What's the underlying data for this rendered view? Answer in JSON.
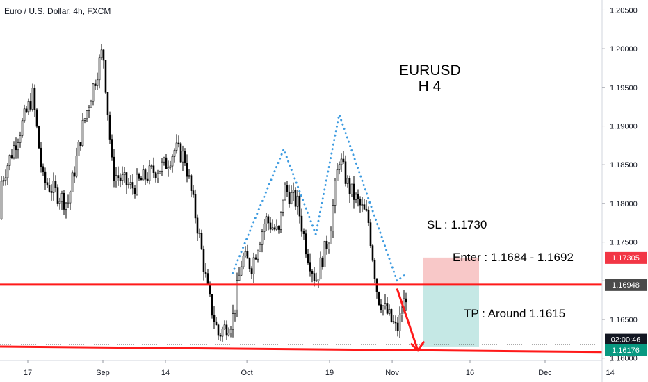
{
  "header": {
    "symbol": "Euro / U.S. Dollar, 4h, FXCM"
  },
  "title": {
    "line1": "EURUSD",
    "line2": "H 4"
  },
  "annotations": {
    "sl": "SL : 1.1730",
    "enter": "Enter : 1.1684 - 1.1692",
    "tp": "TP : Around 1.1615"
  },
  "price_badges": {
    "sl_price": "1.17305",
    "current_price": "1.16948",
    "countdown": "02:00:46",
    "last_price": "1.16176"
  },
  "colors": {
    "candles": "#000000",
    "lines": "#ff1a1a",
    "pattern": "#3d9be0",
    "stop_zone": "#f8c8c8",
    "target_zone": "#c5e8e5",
    "sl_badge": "#f23645",
    "price_badge": "#4a4a4a",
    "last_badge": "#089981"
  },
  "chart_data": {
    "type": "candlestick",
    "instrument": "EURUSD",
    "timeframe": "4h",
    "ylim": [
      1.1597,
      1.2063
    ],
    "y_ticks": [
      "1.20500",
      "1.20000",
      "1.19500",
      "1.19000",
      "1.18500",
      "1.18000",
      "1.17500",
      "1.17000",
      "1.16500",
      "1.16000"
    ],
    "x_ticks": [
      "17",
      "Sep",
      "14",
      "Oct",
      "19",
      "Nov",
      "16",
      "Dec",
      "14"
    ],
    "horizontal_levels": [
      1.1695,
      1.1608
    ],
    "zones": {
      "stop_loss": [
        1.1695,
        1.173
      ],
      "take_profit": [
        1.1615,
        1.1695
      ]
    },
    "price_path": [
      {
        "date": "Aug 10",
        "price": 1.178
      },
      {
        "date": "Aug 13",
        "price": 1.181
      },
      {
        "date": "Aug 18",
        "price": 1.194
      },
      {
        "date": "Aug 20",
        "price": 1.183
      },
      {
        "date": "Aug 25",
        "price": 1.18
      },
      {
        "date": "Aug 28",
        "price": 1.19
      },
      {
        "date": "Sep 1",
        "price": 1.2
      },
      {
        "date": "Sep 3",
        "price": 1.184
      },
      {
        "date": "Sep 7",
        "price": 1.182
      },
      {
        "date": "Sep 11",
        "price": 1.184
      },
      {
        "date": "Sep 14",
        "price": 1.185
      },
      {
        "date": "Sep 16",
        "price": 1.187
      },
      {
        "date": "Sep 18",
        "price": 1.186
      },
      {
        "date": "Sep 21",
        "price": 1.176
      },
      {
        "date": "Sep 23",
        "price": 1.168
      },
      {
        "date": "Sep 25",
        "price": 1.163
      },
      {
        "date": "Sep 28",
        "price": 1.165
      },
      {
        "date": "Sep 30",
        "price": 1.173
      },
      {
        "date": "Oct 2",
        "price": 1.172
      },
      {
        "date": "Oct 5",
        "price": 1.178
      },
      {
        "date": "Oct 8",
        "price": 1.176
      },
      {
        "date": "Oct 9",
        "price": 1.182
      },
      {
        "date": "Oct 12",
        "price": 1.18
      },
      {
        "date": "Oct 14",
        "price": 1.174
      },
      {
        "date": "Oct 16",
        "price": 1.17
      },
      {
        "date": "Oct 19",
        "price": 1.176
      },
      {
        "date": "Oct 21",
        "price": 1.186
      },
      {
        "date": "Oct 23",
        "price": 1.182
      },
      {
        "date": "Oct 27",
        "price": 1.178
      },
      {
        "date": "Oct 29",
        "price": 1.168
      },
      {
        "date": "Nov 2",
        "price": 1.1635
      },
      {
        "date": "Nov 4",
        "price": 1.169
      }
    ],
    "pattern_outline": [
      {
        "date": "Sep 28",
        "price": 1.171
      },
      {
        "date": "Oct 9",
        "price": 1.187
      },
      {
        "date": "Oct 16",
        "price": 1.176
      },
      {
        "date": "Oct 21",
        "price": 1.1915
      },
      {
        "date": "Nov 2",
        "price": 1.17
      },
      {
        "date": "Nov 4",
        "price": 1.171
      }
    ],
    "projection": [
      {
        "date": "Nov 2",
        "price": 1.169
      },
      {
        "date": "Nov 6",
        "price": 1.161
      }
    ]
  }
}
